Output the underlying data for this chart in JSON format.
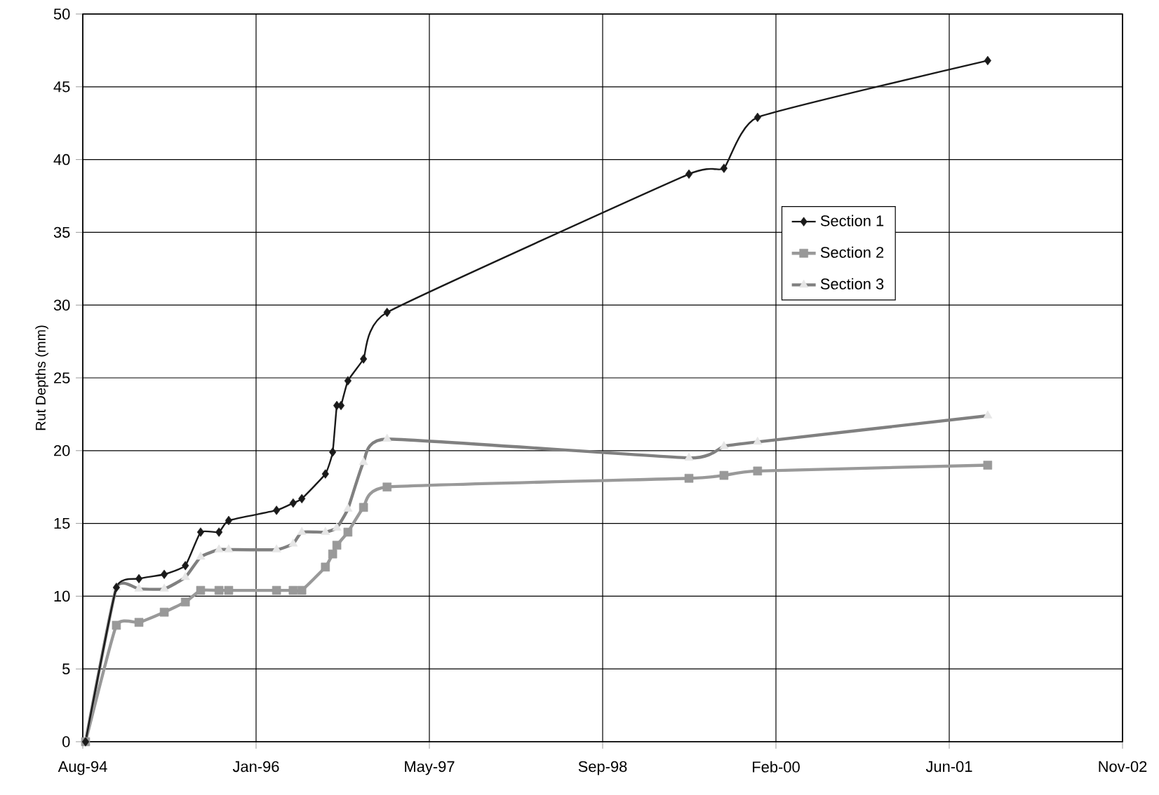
{
  "chart_data": {
    "type": "line",
    "ylabel": "Rut Depths (mm)",
    "ylim": [
      0,
      50
    ],
    "yticks": [
      0,
      5,
      10,
      15,
      20,
      25,
      30,
      35,
      40,
      45,
      50
    ],
    "xlim": [
      "1994-08-20",
      "2002-11-06"
    ],
    "xticks": [
      {
        "value": "1994-08-20",
        "label": "Aug-94"
      },
      {
        "value": "1996-01-02",
        "label": "Jan-96"
      },
      {
        "value": "1997-05-16",
        "label": "May-97"
      },
      {
        "value": "1998-09-28",
        "label": "Sep-98"
      },
      {
        "value": "2000-02-10",
        "label": "Feb-00"
      },
      {
        "value": "2001-06-24",
        "label": "Jun-01"
      },
      {
        "value": "2002-11-06",
        "label": "Nov-02"
      }
    ],
    "grid": true,
    "legend": "right",
    "series": [
      {
        "name": "Section 1",
        "color": "#1a1a1a",
        "marker": "diamond",
        "x": [
          "1994-08-28",
          "1994-11-25",
          "1995-01-29",
          "1995-04-12",
          "1995-06-12",
          "1995-07-26",
          "1995-09-17",
          "1995-10-15",
          "1996-03-01",
          "1996-04-18",
          "1996-05-13",
          "1996-07-20",
          "1996-08-10",
          "1996-08-22",
          "1996-09-03",
          "1996-09-23",
          "1996-11-07",
          "1997-01-14",
          "1999-06-04",
          "1999-09-13",
          "1999-12-19",
          "2001-10-13"
        ],
        "values": [
          0,
          10.6,
          11.2,
          11.5,
          12.1,
          14.4,
          14.4,
          15.2,
          15.9,
          16.4,
          16.7,
          18.4,
          19.9,
          23.1,
          23.1,
          24.8,
          26.3,
          29.5,
          39.0,
          39.4,
          42.9,
          46.8
        ]
      },
      {
        "name": "Section 2",
        "color": "#999999",
        "marker": "square",
        "x": [
          "1994-08-28",
          "1994-11-25",
          "1995-01-29",
          "1995-04-12",
          "1995-06-12",
          "1995-07-26",
          "1995-09-17",
          "1995-10-15",
          "1996-03-01",
          "1996-04-18",
          "1996-05-13",
          "1996-07-20",
          "1996-08-10",
          "1996-08-22",
          "1996-09-23",
          "1996-11-07",
          "1997-01-14",
          "1999-06-04",
          "1999-09-13",
          "1999-12-19",
          "2001-10-13"
        ],
        "values": [
          0,
          8.0,
          8.2,
          8.9,
          9.6,
          10.4,
          10.4,
          10.4,
          10.4,
          10.4,
          10.4,
          12.0,
          12.9,
          13.5,
          14.4,
          16.1,
          17.5,
          18.1,
          18.3,
          18.6,
          19.0
        ]
      },
      {
        "name": "Section 3",
        "color": "#808080",
        "marker": "triangle",
        "x": [
          "1994-08-28",
          "1994-11-25",
          "1995-01-29",
          "1995-04-12",
          "1995-06-12",
          "1995-07-26",
          "1995-09-17",
          "1995-10-15",
          "1996-03-01",
          "1996-04-18",
          "1996-05-13",
          "1996-07-20",
          "1996-08-22",
          "1996-09-23",
          "1996-11-07",
          "1997-01-14",
          "1999-06-04",
          "1999-09-13",
          "1999-12-19",
          "2001-10-13"
        ],
        "values": [
          0,
          10.6,
          10.5,
          10.5,
          11.3,
          12.7,
          13.2,
          13.2,
          13.2,
          13.6,
          14.4,
          14.4,
          14.7,
          16.0,
          19.2,
          20.8,
          19.5,
          20.3,
          20.6,
          22.4
        ]
      }
    ]
  }
}
